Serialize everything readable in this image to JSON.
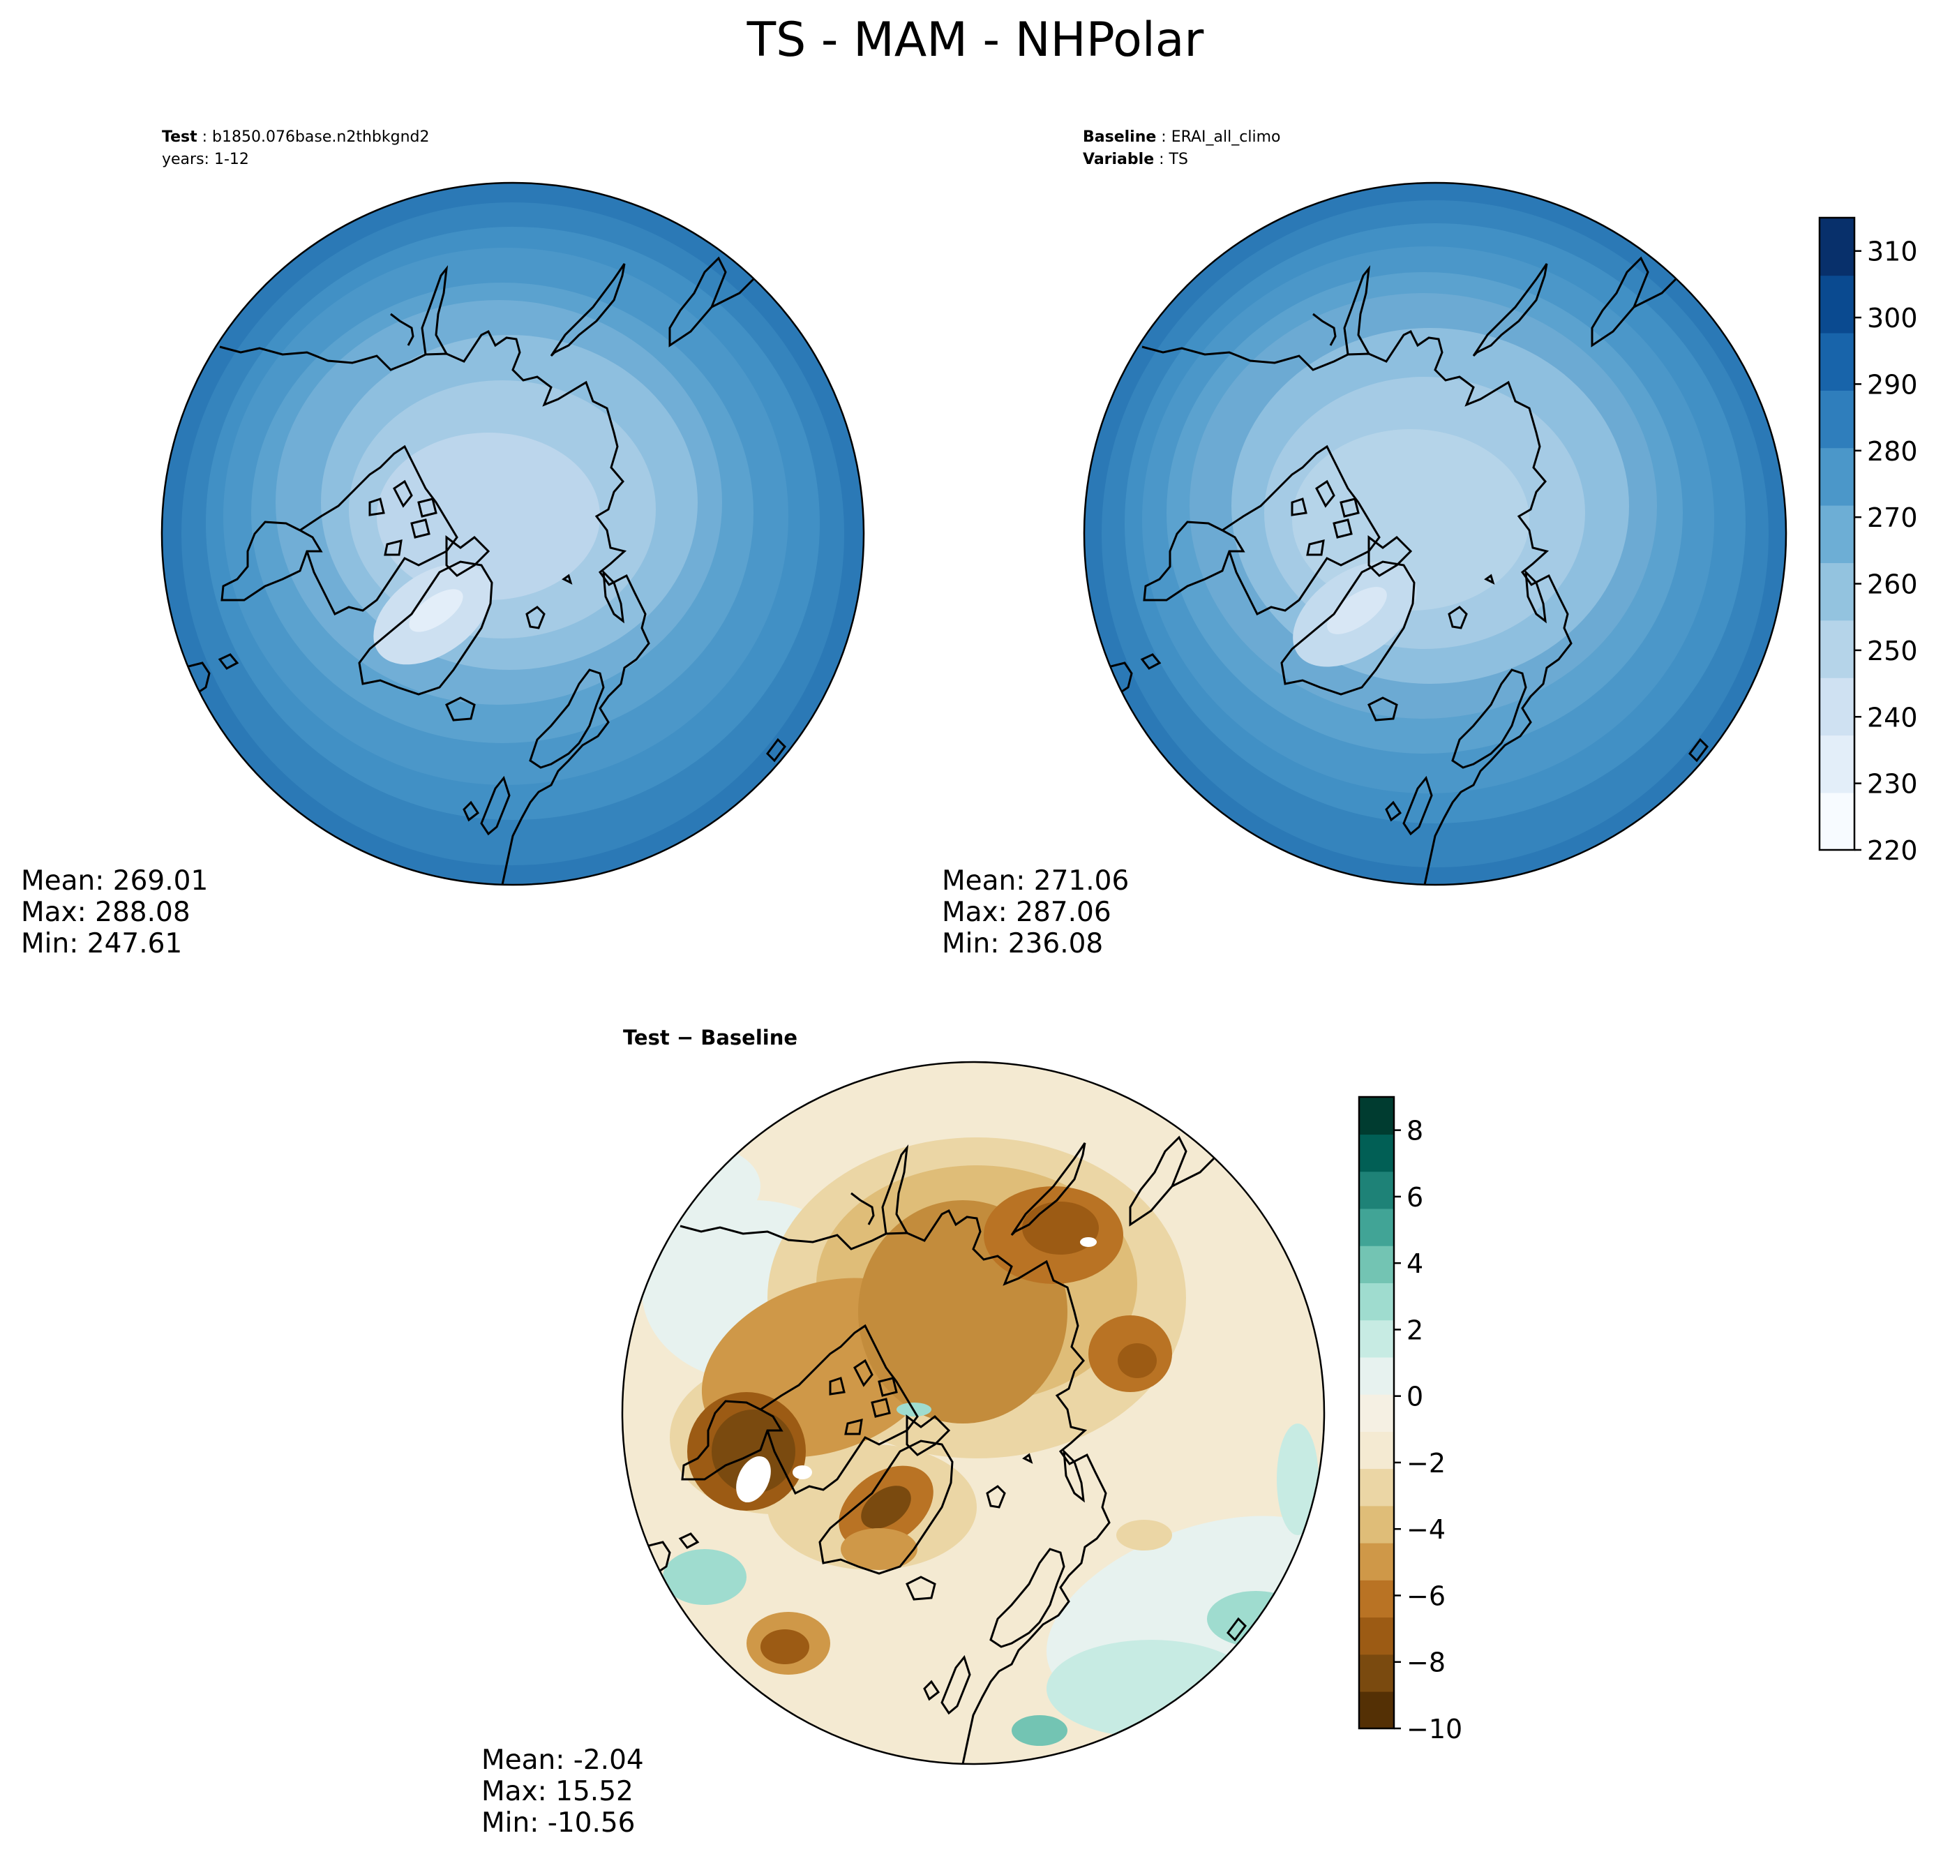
{
  "figure": {
    "title": "TS - MAM - NHPolar"
  },
  "chart_data": [
    {
      "type": "heatmap",
      "projection": "north-polar-stereographic",
      "header": [
        {
          "key": "Test",
          "value": "b1850.076base.n2thbkgnd2"
        },
        {
          "key": "",
          "value": "years: 1-12"
        }
      ],
      "stats": {
        "Mean": "269.01",
        "Max": "288.08",
        "Min": "247.61"
      },
      "colormap": "blues",
      "grid": false
    },
    {
      "type": "heatmap",
      "projection": "north-polar-stereographic",
      "header": [
        {
          "key": "Baseline",
          "value": "ERAI_all_climo"
        },
        {
          "key": "Variable",
          "value": "TS"
        }
      ],
      "stats": {
        "Mean": "271.06",
        "Max": "287.06",
        "Min": "236.08"
      },
      "colormap": "blues",
      "grid": false
    },
    {
      "type": "heatmap",
      "projection": "north-polar-stereographic",
      "header": [
        {
          "key": "Test − Baseline",
          "value": ""
        }
      ],
      "stats": {
        "Mean": "-2.04",
        "Max": "15.52",
        "Min": "-10.56"
      },
      "colormap": "brown-to-teal diverging",
      "grid": false
    }
  ],
  "colorbars": [
    {
      "for": "test-and-baseline",
      "range": [
        220,
        315
      ],
      "ticks": [
        "220",
        "230",
        "240",
        "250",
        "260",
        "270",
        "280",
        "290",
        "300",
        "310"
      ],
      "tick_values": [
        220,
        230,
        240,
        250,
        260,
        270,
        280,
        290,
        300,
        310
      ],
      "colors": [
        "#f7fbff",
        "#e3eef9",
        "#cfe1f2",
        "#b5d4e9",
        "#93c3df",
        "#6daed5",
        "#4b97c9",
        "#2f7ebc",
        "#1864aa",
        "#0a4a90",
        "#08306b"
      ]
    },
    {
      "for": "difference",
      "range": [
        -10,
        9
      ],
      "ticks": [
        "−10",
        "−8",
        "−6",
        "−4",
        "−2",
        "0",
        "2",
        "4",
        "6",
        "8"
      ],
      "tick_values": [
        -10,
        -8,
        -6,
        -4,
        -2,
        0,
        2,
        4,
        6,
        8
      ],
      "colors": [
        "#543005",
        "#7a4a0f",
        "#9c5b14",
        "#b97324",
        "#cf9848",
        "#dfbd78",
        "#ebd6a5",
        "#f4ead2",
        "#f5f0e3",
        "#e7f2ef",
        "#c7ebe3",
        "#9fdccf",
        "#73c4b3",
        "#41a496",
        "#1e8277",
        "#015f55",
        "#003c30"
      ]
    }
  ]
}
